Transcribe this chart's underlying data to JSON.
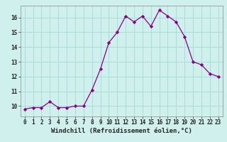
{
  "x": [
    0,
    1,
    2,
    3,
    4,
    5,
    6,
    7,
    8,
    9,
    10,
    11,
    12,
    13,
    14,
    15,
    16,
    17,
    18,
    19,
    20,
    21,
    22,
    23
  ],
  "y": [
    9.8,
    9.9,
    9.9,
    10.3,
    9.9,
    9.9,
    10.0,
    10.0,
    11.1,
    12.5,
    14.3,
    15.0,
    16.1,
    15.7,
    16.1,
    15.4,
    16.5,
    16.1,
    15.7,
    14.7,
    13.0,
    12.8,
    12.2,
    12.0
  ],
  "line_color": "#880088",
  "marker": "D",
  "marker_size": 2.2,
  "bg_color": "#cff0ec",
  "grid_color": "#aaddda",
  "xlabel": "Windchill (Refroidissement éolien,°C)",
  "xlim": [
    -0.5,
    23.5
  ],
  "ylim": [
    9.3,
    16.8
  ],
  "yticks": [
    10,
    11,
    12,
    13,
    14,
    15,
    16
  ],
  "xticks": [
    0,
    1,
    2,
    3,
    4,
    5,
    6,
    7,
    8,
    9,
    10,
    11,
    12,
    13,
    14,
    15,
    16,
    17,
    18,
    19,
    20,
    21,
    22,
    23
  ],
  "tick_fontsize": 5.5,
  "xlabel_fontsize": 6.5
}
